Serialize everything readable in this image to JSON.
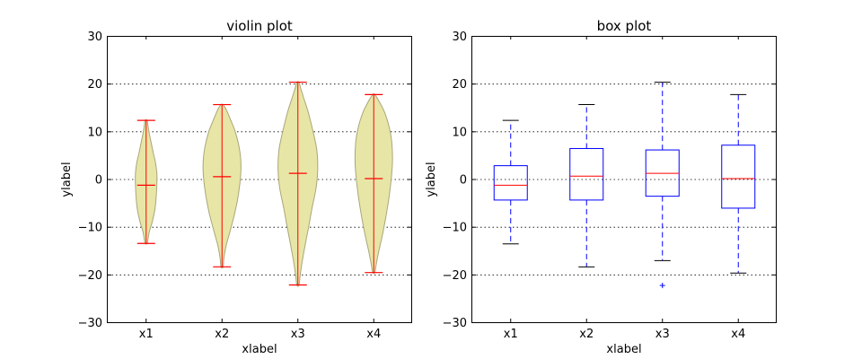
{
  "chart_data": [
    {
      "type": "violin",
      "title": "violin plot",
      "xlabel": "xlabel",
      "ylabel": "ylabel",
      "ylim": [
        -30,
        30
      ],
      "yticks": [
        -30,
        -20,
        -10,
        0,
        10,
        20,
        30
      ],
      "ytick_labels": [
        "−30",
        "−20",
        "−10",
        "0",
        "10",
        "20",
        "30"
      ],
      "categories": [
        "x1",
        "x2",
        "x3",
        "x4"
      ],
      "grid": "y",
      "colors": {
        "body": "#e8e6a6",
        "body_edge": "#a8a67a",
        "lines": "#ff0000"
      },
      "series": [
        {
          "name": "x1",
          "min": -13.5,
          "max": 12.3,
          "mean": -1.3,
          "profile": [
            [
              -13.5,
              0.5
            ],
            [
              -12.5,
              0.9
            ],
            [
              -11,
              1.5
            ],
            [
              -9,
              2.8
            ],
            [
              -6,
              4.2
            ],
            [
              -2,
              4.9
            ],
            [
              1,
              5.0
            ],
            [
              3.5,
              4.3
            ],
            [
              5.5,
              3.3
            ],
            [
              7.5,
              2.4
            ],
            [
              9.5,
              1.5
            ],
            [
              11,
              0.9
            ],
            [
              12.3,
              0.5
            ]
          ]
        },
        {
          "name": "x2",
          "min": -18.4,
          "max": 15.6,
          "mean": 0.5,
          "profile": [
            [
              -18.4,
              0.5
            ],
            [
              -16.5,
              0.9
            ],
            [
              -14,
              1.9
            ],
            [
              -11,
              3.7
            ],
            [
              -7,
              6.0
            ],
            [
              -3,
              7.7
            ],
            [
              1,
              8.7
            ],
            [
              4,
              8.7
            ],
            [
              7,
              7.8
            ],
            [
              10,
              6.1
            ],
            [
              12.5,
              3.9
            ],
            [
              14.5,
              2.0
            ],
            [
              15.6,
              0.5
            ]
          ]
        },
        {
          "name": "x3",
          "min": -22.2,
          "max": 20.3,
          "mean": 1.2,
          "profile": [
            [
              -22.2,
              0.5
            ],
            [
              -20,
              1.1
            ],
            [
              -17,
              2.1
            ],
            [
              -14,
              3.3
            ],
            [
              -10,
              5.0
            ],
            [
              -6,
              6.6
            ],
            [
              -2,
              8.4
            ],
            [
              2,
              9.2
            ],
            [
              6,
              8.8
            ],
            [
              10,
              7.0
            ],
            [
              14,
              4.8
            ],
            [
              17,
              2.7
            ],
            [
              19,
              1.3
            ],
            [
              20.3,
              0.5
            ]
          ]
        },
        {
          "name": "x4",
          "min": -19.6,
          "max": 17.7,
          "mean": 0.1,
          "profile": [
            [
              -19.6,
              0.5
            ],
            [
              -18,
              1.1
            ],
            [
              -15,
              2.4
            ],
            [
              -12,
              3.9
            ],
            [
              -8,
              5.6
            ],
            [
              -4,
              7.0
            ],
            [
              0,
              8.1
            ],
            [
              4,
              8.7
            ],
            [
              8,
              8.3
            ],
            [
              11,
              7.1
            ],
            [
              14,
              5.0
            ],
            [
              16,
              2.8
            ],
            [
              17.7,
              0.5
            ]
          ]
        }
      ]
    },
    {
      "type": "box",
      "title": "box plot",
      "xlabel": "xlabel",
      "ylabel": "ylabel",
      "ylim": [
        -30,
        30
      ],
      "yticks": [
        -30,
        -20,
        -10,
        0,
        10,
        20,
        30
      ],
      "ytick_labels": [
        "−30",
        "−20",
        "−10",
        "0",
        "10",
        "20",
        "30"
      ],
      "categories": [
        "x1",
        "x2",
        "x3",
        "x4"
      ],
      "grid": "y",
      "colors": {
        "box": "#0000ff",
        "whisker": "#0000ff",
        "median": "#ff0000",
        "cap": "#000000",
        "flier": "#0000ff"
      },
      "series": [
        {
          "name": "x1",
          "whisker_low": -13.6,
          "q1": -4.4,
          "median": -1.3,
          "q3": 2.8,
          "whisker_high": 12.3,
          "fliers": []
        },
        {
          "name": "x2",
          "whisker_low": -18.4,
          "q1": -4.4,
          "median": 0.6,
          "q3": 6.4,
          "whisker_high": 15.6,
          "fliers": []
        },
        {
          "name": "x3",
          "whisker_low": -17.1,
          "q1": -3.6,
          "median": 1.2,
          "q3": 6.1,
          "whisker_high": 20.3,
          "fliers": [
            -22.3
          ]
        },
        {
          "name": "x4",
          "whisker_low": -19.7,
          "q1": -6.1,
          "median": 0.1,
          "q3": 7.1,
          "whisker_high": 17.7,
          "fliers": []
        }
      ]
    }
  ]
}
